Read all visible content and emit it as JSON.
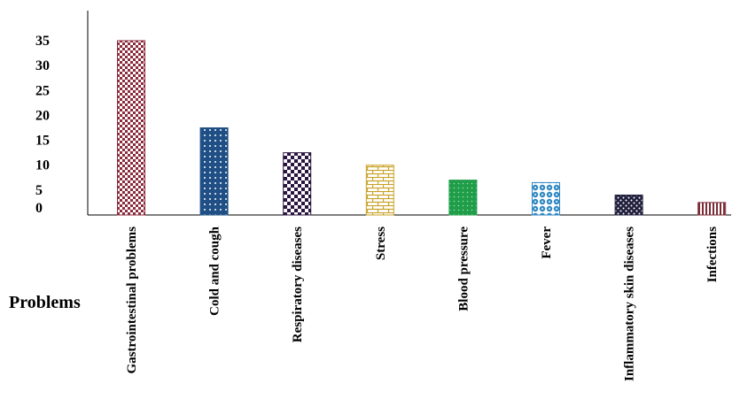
{
  "chart_data": {
    "type": "bar",
    "categories": [
      "Gastrointestinal problems",
      "Cold and cough",
      "Respiratory diseases",
      "Stress",
      "Blood pressure",
      "Fever",
      "Inflammatory skin diseases",
      "Infections"
    ],
    "values": [
      35,
      17.5,
      12.5,
      10,
      7,
      6.5,
      4,
      2.5
    ],
    "xlabel": "Problems",
    "ylabel": "",
    "ylim": [
      0,
      35
    ],
    "yticks": [
      0,
      5,
      10,
      15,
      20,
      25,
      30,
      35
    ],
    "grid": false,
    "legend": "none",
    "bar_styles": [
      {
        "pattern": "checker",
        "color": "#8b2a3c"
      },
      {
        "pattern": "dots",
        "color": "#1f4f84"
      },
      {
        "pattern": "checker",
        "color": "#2a1540"
      },
      {
        "pattern": "bricks",
        "color": "#c9a227"
      },
      {
        "pattern": "dots",
        "color": "#1f9d48"
      },
      {
        "pattern": "circles",
        "color": "#2e86c1"
      },
      {
        "pattern": "weave",
        "color": "#1f1f3d"
      },
      {
        "pattern": "vstripes",
        "color": "#7a2b35"
      }
    ]
  }
}
